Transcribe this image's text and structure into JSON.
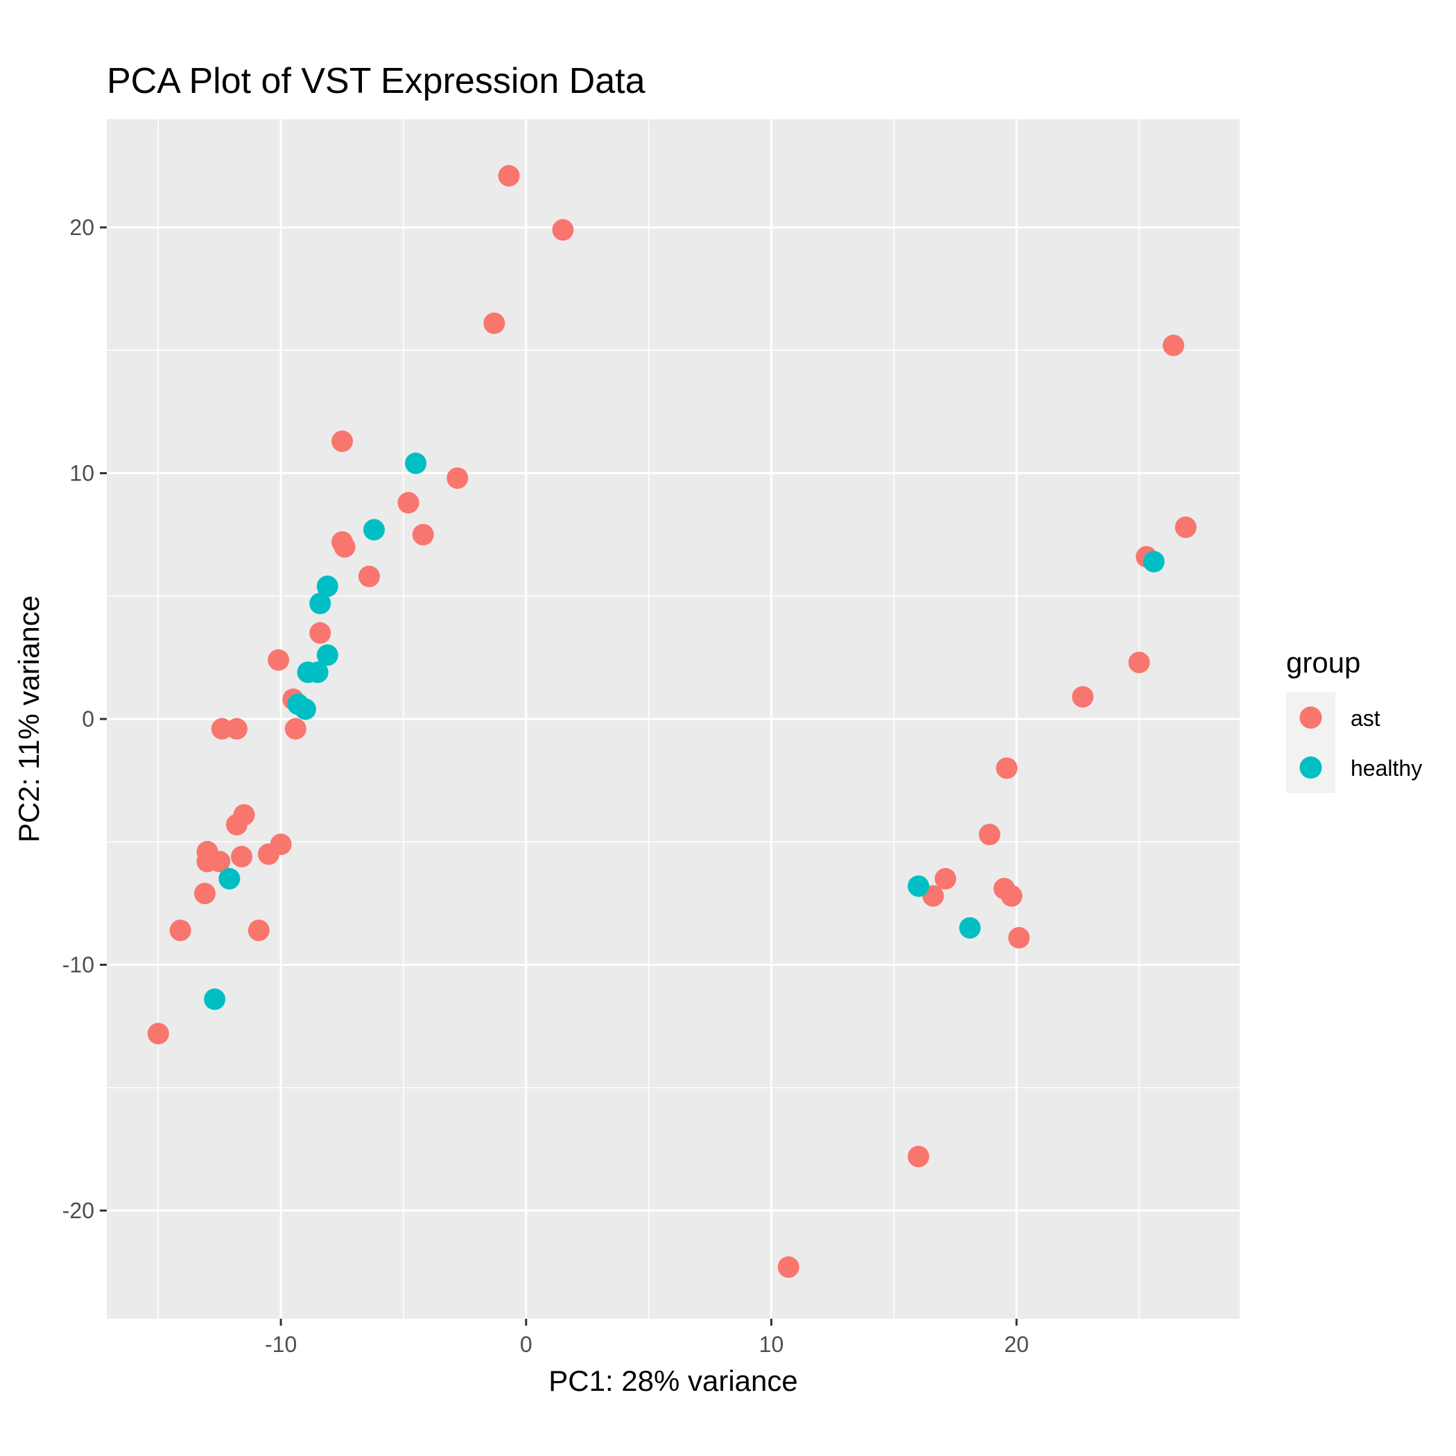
{
  "chart_data": {
    "type": "scatter",
    "title": "PCA Plot of VST Expression Data",
    "xlabel": "PC1: 28% variance",
    "ylabel": "PC2: 11% variance",
    "xlim": [
      -17.1,
      29.1
    ],
    "ylim": [
      -24.4,
      24.4
    ],
    "x_ticks": [
      -10,
      0,
      10,
      20
    ],
    "y_ticks": [
      -20,
      -10,
      0,
      10,
      20
    ],
    "x_tick_labels": [
      "-10",
      "0",
      "10",
      "20"
    ],
    "y_tick_labels": [
      "-20",
      "-10",
      "0",
      "10",
      "20"
    ],
    "grid": true,
    "legend": {
      "title": "group",
      "position": "right"
    },
    "series": [
      {
        "name": "ast",
        "color": "#F8766D",
        "points": [
          {
            "x": -0.7,
            "y": 22.1
          },
          {
            "x": 1.5,
            "y": 19.9
          },
          {
            "x": -1.3,
            "y": 16.1
          },
          {
            "x": -7.5,
            "y": 11.3
          },
          {
            "x": -2.8,
            "y": 9.8
          },
          {
            "x": -4.8,
            "y": 8.8
          },
          {
            "x": -4.2,
            "y": 7.5
          },
          {
            "x": -7.5,
            "y": 7.2
          },
          {
            "x": -7.4,
            "y": 7.0
          },
          {
            "x": -6.4,
            "y": 5.8
          },
          {
            "x": -8.4,
            "y": 3.5
          },
          {
            "x": -10.1,
            "y": 2.4
          },
          {
            "x": -9.5,
            "y": 0.8
          },
          {
            "x": -9.4,
            "y": -0.4
          },
          {
            "x": -12.4,
            "y": -0.4
          },
          {
            "x": -11.8,
            "y": -0.4
          },
          {
            "x": -11.5,
            "y": -3.9
          },
          {
            "x": -11.8,
            "y": -4.3
          },
          {
            "x": -10.0,
            "y": -5.1
          },
          {
            "x": -10.5,
            "y": -5.5
          },
          {
            "x": -11.6,
            "y": -5.6
          },
          {
            "x": -13.0,
            "y": -5.4
          },
          {
            "x": -12.5,
            "y": -5.8
          },
          {
            "x": -13.0,
            "y": -5.8
          },
          {
            "x": -13.1,
            "y": -7.1
          },
          {
            "x": -14.1,
            "y": -8.6
          },
          {
            "x": -10.9,
            "y": -8.6
          },
          {
            "x": -15.0,
            "y": -12.8
          },
          {
            "x": 26.4,
            "y": 15.2
          },
          {
            "x": 26.9,
            "y": 7.8
          },
          {
            "x": 25.3,
            "y": 6.6
          },
          {
            "x": 25.0,
            "y": 2.3
          },
          {
            "x": 22.7,
            "y": 0.9
          },
          {
            "x": 19.6,
            "y": -2.0
          },
          {
            "x": 18.9,
            "y": -4.7
          },
          {
            "x": 17.1,
            "y": -6.5
          },
          {
            "x": 16.6,
            "y": -7.2
          },
          {
            "x": 19.5,
            "y": -6.9
          },
          {
            "x": 19.8,
            "y": -7.2
          },
          {
            "x": 20.1,
            "y": -8.9
          },
          {
            "x": 16.0,
            "y": -17.8
          },
          {
            "x": 10.7,
            "y": -22.3
          }
        ]
      },
      {
        "name": "healthy",
        "color": "#00BFC4",
        "points": [
          {
            "x": -4.5,
            "y": 10.4
          },
          {
            "x": -6.2,
            "y": 7.7
          },
          {
            "x": -8.1,
            "y": 5.4
          },
          {
            "x": -8.4,
            "y": 4.7
          },
          {
            "x": -8.1,
            "y": 2.6
          },
          {
            "x": -8.9,
            "y": 1.9
          },
          {
            "x": -8.5,
            "y": 1.9
          },
          {
            "x": -9.3,
            "y": 0.6
          },
          {
            "x": -9.0,
            "y": 0.4
          },
          {
            "x": -12.1,
            "y": -6.5
          },
          {
            "x": -12.7,
            "y": -11.4
          },
          {
            "x": 25.6,
            "y": 6.4
          },
          {
            "x": 16.0,
            "y": -6.8
          },
          {
            "x": 18.1,
            "y": -8.5
          }
        ]
      }
    ]
  }
}
